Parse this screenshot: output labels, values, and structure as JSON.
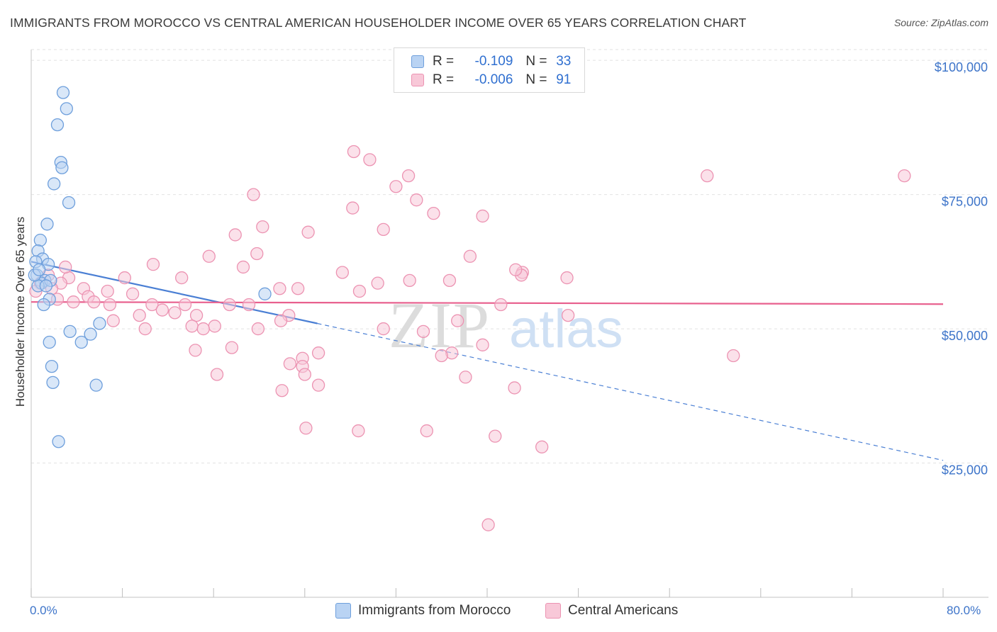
{
  "title": "IMMIGRANTS FROM MOROCCO VS CENTRAL AMERICAN HOUSEHOLDER INCOME OVER 65 YEARS CORRELATION CHART",
  "source": "Source: ZipAtlas.com",
  "watermark": {
    "zip": "ZIP",
    "atlas": "atlas"
  },
  "legend": {
    "blue": {
      "r_label": "R =",
      "r_value": "-0.109",
      "n_label": "N =",
      "n_value": "33"
    },
    "pink": {
      "r_label": "R =",
      "r_value": "-0.006",
      "n_label": "N =",
      "n_value": "91"
    }
  },
  "bottom_legend": {
    "blue": "Immigrants from Morocco",
    "pink": "Central Americans"
  },
  "x_axis": {
    "min_label": "0.0%",
    "max_label": "80.0%"
  },
  "colors": {
    "blue": "#4a7fd4",
    "blue_fill": "#b9d3f3",
    "pink": "#e8608e",
    "pink_fill": "#f8c8d8",
    "axis_text": "#3d74c9"
  },
  "chart_data": {
    "type": "scatter",
    "title": "IMMIGRANTS FROM MOROCCO VS CENTRAL AMERICAN HOUSEHOLDER INCOME OVER 65 YEARS CORRELATION CHART",
    "xlabel": "",
    "ylabel": "Householder Income Over 65 years",
    "xlim": [
      0,
      80
    ],
    "ylim": [
      0,
      102000
    ],
    "y_ticks": [
      {
        "value": 25000,
        "label": "$25,000"
      },
      {
        "value": 50000,
        "label": "$50,000"
      },
      {
        "value": 75000,
        "label": "$75,000"
      },
      {
        "value": 100000,
        "label": "$100,000"
      }
    ],
    "x_ticks": [
      0,
      8,
      16,
      24,
      32,
      40,
      48,
      56,
      64,
      72,
      80
    ],
    "series": [
      {
        "name": "Immigrants from Morocco",
        "color": "blue",
        "r": -0.109,
        "n": 33,
        "trend": {
          "x0": 0,
          "y0": 62500,
          "x1": 25.1,
          "y1": 51000,
          "dash_x1": 80,
          "dash_y1": 25500
        },
        "points": [
          [
            2.8,
            94000
          ],
          [
            3.1,
            91000
          ],
          [
            2.3,
            88000
          ],
          [
            2.6,
            81000
          ],
          [
            2.7,
            80000
          ],
          [
            2.0,
            77000
          ],
          [
            3.3,
            73500
          ],
          [
            1.4,
            69500
          ],
          [
            0.8,
            66500
          ],
          [
            0.6,
            64500
          ],
          [
            1.0,
            63000
          ],
          [
            1.5,
            62000
          ],
          [
            0.4,
            62500
          ],
          [
            0.5,
            60000
          ],
          [
            1.2,
            59000
          ],
          [
            0.9,
            58500
          ],
          [
            0.6,
            58000
          ],
          [
            1.7,
            59000
          ],
          [
            1.6,
            55500
          ],
          [
            1.1,
            54500
          ],
          [
            6.0,
            51000
          ],
          [
            3.4,
            49500
          ],
          [
            5.2,
            49000
          ],
          [
            4.4,
            47500
          ],
          [
            1.6,
            47500
          ],
          [
            1.8,
            43000
          ],
          [
            1.9,
            40000
          ],
          [
            5.7,
            39500
          ],
          [
            2.4,
            29000
          ],
          [
            20.5,
            56500
          ],
          [
            0.3,
            60000
          ],
          [
            1.3,
            58000
          ],
          [
            0.7,
            61000
          ]
        ]
      },
      {
        "name": "Central Americans",
        "color": "pink",
        "r": -0.006,
        "n": 91,
        "trend": {
          "x0": 0,
          "y0": 55000,
          "x1": 80,
          "y1": 54600
        },
        "points": [
          [
            28.3,
            83000
          ],
          [
            29.7,
            81500
          ],
          [
            33.1,
            78500
          ],
          [
            32.0,
            76500
          ],
          [
            59.3,
            78500
          ],
          [
            76.6,
            78500
          ],
          [
            19.5,
            75000
          ],
          [
            33.8,
            74000
          ],
          [
            28.2,
            72500
          ],
          [
            35.3,
            71500
          ],
          [
            39.6,
            71000
          ],
          [
            20.3,
            69000
          ],
          [
            24.3,
            68000
          ],
          [
            17.9,
            67500
          ],
          [
            30.9,
            68500
          ],
          [
            19.8,
            64000
          ],
          [
            15.6,
            63500
          ],
          [
            38.5,
            63500
          ],
          [
            10.7,
            62000
          ],
          [
            18.6,
            61500
          ],
          [
            27.3,
            60500
          ],
          [
            43.1,
            60500
          ],
          [
            47.0,
            59500
          ],
          [
            8.2,
            59500
          ],
          [
            13.2,
            59500
          ],
          [
            33.2,
            59000
          ],
          [
            36.7,
            59000
          ],
          [
            3.3,
            59500
          ],
          [
            2.6,
            58500
          ],
          [
            30.4,
            58500
          ],
          [
            21.8,
            57500
          ],
          [
            23.4,
            57500
          ],
          [
            28.8,
            57000
          ],
          [
            4.6,
            57500
          ],
          [
            6.7,
            57000
          ],
          [
            5.0,
            56000
          ],
          [
            8.9,
            56500
          ],
          [
            1.8,
            57500
          ],
          [
            2.3,
            55500
          ],
          [
            3.7,
            55000
          ],
          [
            5.5,
            55000
          ],
          [
            6.9,
            54500
          ],
          [
            10.6,
            54500
          ],
          [
            13.5,
            54500
          ],
          [
            17.4,
            54500
          ],
          [
            19.1,
            54500
          ],
          [
            41.2,
            54500
          ],
          [
            11.5,
            53500
          ],
          [
            12.6,
            53000
          ],
          [
            9.5,
            52500
          ],
          [
            14.5,
            52500
          ],
          [
            22.6,
            52500
          ],
          [
            21.9,
            51500
          ],
          [
            7.2,
            51500
          ],
          [
            14.1,
            50500
          ],
          [
            16.1,
            50500
          ],
          [
            15.1,
            50000
          ],
          [
            19.9,
            50000
          ],
          [
            30.9,
            50000
          ],
          [
            34.4,
            49500
          ],
          [
            37.4,
            51500
          ],
          [
            10.0,
            50000
          ],
          [
            39.6,
            47000
          ],
          [
            47.1,
            52500
          ],
          [
            14.4,
            46000
          ],
          [
            17.6,
            46500
          ],
          [
            25.2,
            45500
          ],
          [
            36.9,
            45500
          ],
          [
            23.8,
            44500
          ],
          [
            22.7,
            43500
          ],
          [
            23.8,
            43000
          ],
          [
            16.3,
            41500
          ],
          [
            24.0,
            41500
          ],
          [
            38.1,
            41000
          ],
          [
            25.2,
            39500
          ],
          [
            42.4,
            39000
          ],
          [
            22.0,
            38500
          ],
          [
            36.0,
            45000
          ],
          [
            24.1,
            31500
          ],
          [
            28.7,
            31000
          ],
          [
            34.7,
            31000
          ],
          [
            40.7,
            30000
          ],
          [
            44.8,
            28000
          ],
          [
            40.1,
            13500
          ],
          [
            61.6,
            45000
          ],
          [
            43.0,
            60000
          ],
          [
            42.5,
            61000
          ],
          [
            3.0,
            61500
          ],
          [
            1.5,
            60000
          ],
          [
            0.8,
            58500
          ],
          [
            0.4,
            57000
          ]
        ]
      }
    ]
  }
}
